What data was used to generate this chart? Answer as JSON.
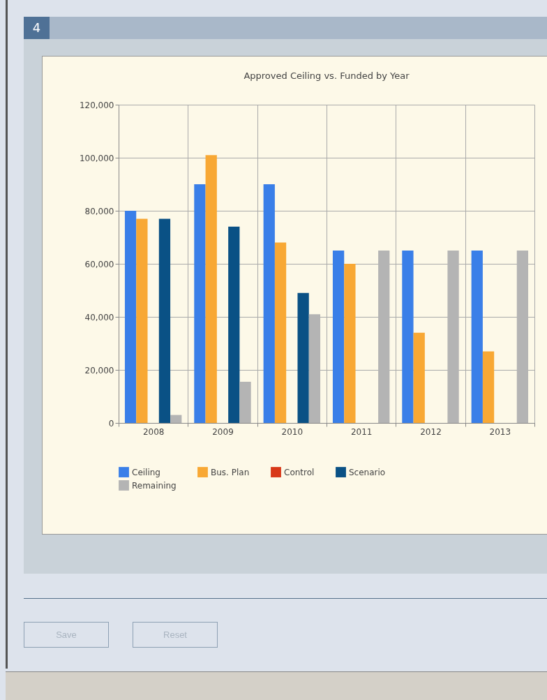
{
  "chart_data": {
    "type": "bar",
    "title": "Approved Ceiling vs. Funded by Year",
    "categories": [
      "2008",
      "2009",
      "2010",
      "2011",
      "2012",
      "2013"
    ],
    "series": [
      {
        "name": "Ceiling",
        "color": "#3a7fe8",
        "values": [
          80000,
          90000,
          90000,
          65000,
          65000,
          65000
        ]
      },
      {
        "name": "Bus. Plan",
        "color": "#f8a834",
        "values": [
          77000,
          101000,
          68000,
          60000,
          34000,
          27000
        ]
      },
      {
        "name": "Control",
        "color": "#d83818",
        "values": [
          null,
          null,
          null,
          null,
          null,
          null
        ]
      },
      {
        "name": "Scenario",
        "color": "#0a5185",
        "values": [
          77000,
          74000,
          49000,
          null,
          null,
          null
        ]
      },
      {
        "name": "Remaining",
        "color": "#b4b4b4",
        "values": [
          3000,
          15500,
          41000,
          65000,
          65000,
          65000
        ]
      }
    ],
    "ylim": [
      0,
      120000
    ],
    "yticks": [
      0,
      {
        "value": 20000,
        "label": "20,000"
      },
      {
        "value": 40000,
        "label": "40,000"
      },
      {
        "value": 60000,
        "label": "60,000"
      },
      {
        "value": 80000,
        "label": "80,000"
      },
      {
        "value": 100000,
        "label": "100,000"
      },
      {
        "value": 120000,
        "label": "120,000"
      }
    ],
    "grid": true,
    "legend": "bottom",
    "annotations": [
      "4",
      "Save",
      "Reset"
    ]
  }
}
